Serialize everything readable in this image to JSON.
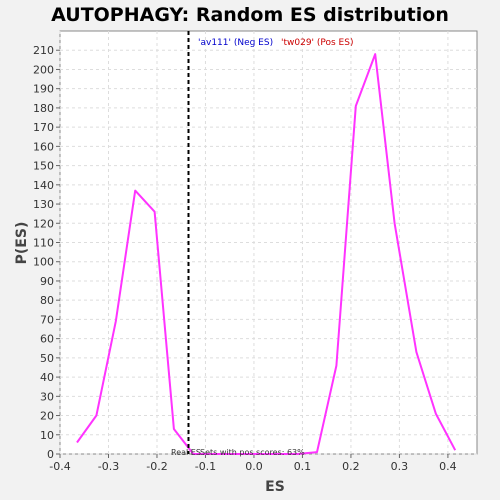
{
  "chart_data": {
    "type": "line",
    "title": "AUTOPHAGY: Random ES distribution",
    "xlabel": "ES",
    "ylabel": "P(ES)",
    "xlim": [
      -0.4,
      0.46
    ],
    "ylim": [
      0,
      220
    ],
    "xticks": [
      -0.4,
      -0.3,
      -0.2,
      -0.1,
      0.0,
      0.1,
      0.2,
      0.3,
      0.4
    ],
    "xtick_labels": [
      "-0.4",
      "-0.3",
      "-0.2",
      "-0.1",
      "0.0",
      "0.1",
      "0.2",
      "0.3",
      "0.4"
    ],
    "yticks": [
      0,
      10,
      20,
      30,
      40,
      50,
      60,
      70,
      80,
      90,
      100,
      110,
      120,
      130,
      140,
      150,
      160,
      170,
      180,
      190,
      200,
      210
    ],
    "ytick_labels": [
      "0",
      "10",
      "20",
      "30",
      "40",
      "50",
      "60",
      "70",
      "80",
      "90",
      "100",
      "110",
      "120",
      "130",
      "140",
      "150",
      "160",
      "170",
      "180",
      "190",
      "200",
      "210"
    ],
    "grid": true,
    "series": [
      {
        "color": "#ff33ff",
        "x": [
          -0.365,
          -0.325,
          -0.285,
          -0.245,
          -0.205,
          -0.165,
          -0.125,
          -0.09,
          0.0,
          0.09,
          0.13,
          0.17,
          0.21,
          0.25,
          0.29,
          0.335,
          0.375,
          0.415
        ],
        "y": [
          6,
          20,
          69,
          137,
          126,
          13,
          0,
          0,
          0,
          0,
          1,
          46,
          181,
          208,
          120,
          53,
          21,
          2
        ]
      }
    ],
    "real_es_line": {
      "x": -0.135,
      "color": "#000000",
      "style": "dashed"
    },
    "annotations": {
      "neg_label": "'av111' (Neg ES)",
      "neg_color": "#0000cc",
      "pos_label": "'tw029' (Pos ES)",
      "pos_color": "#cc0000",
      "real_es_text": "Real ES",
      "sets_text": "Sets with pos scores: 63%"
    }
  }
}
